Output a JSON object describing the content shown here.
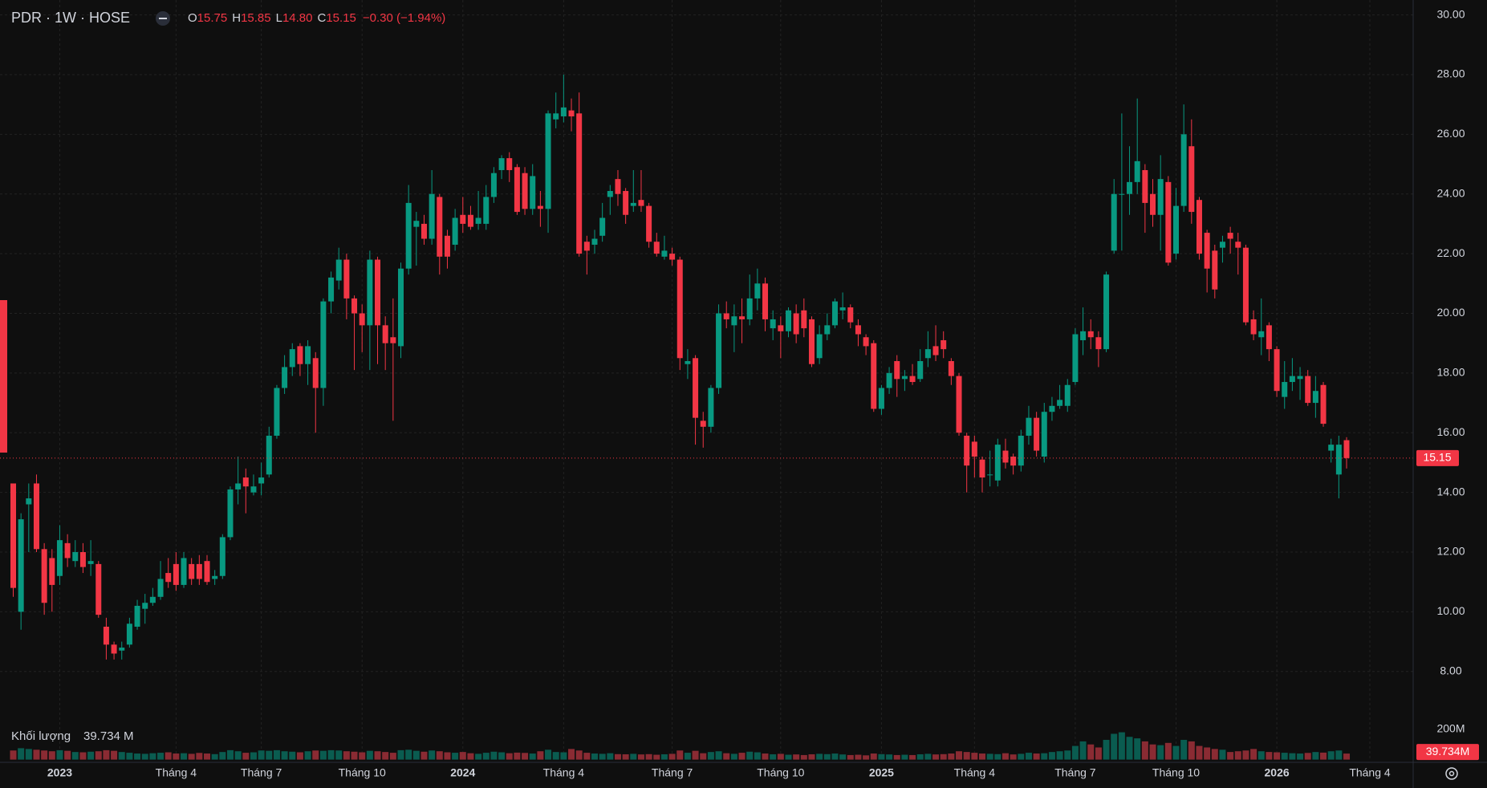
{
  "header": {
    "symbol": "PDR · 1W · HOSE",
    "o_label": "O",
    "o": "15.75",
    "h_label": "H",
    "h": "15.85",
    "l_label": "L",
    "l": "14.80",
    "c_label": "C",
    "c": "15.15",
    "change": "−0.30 (−1.94%)"
  },
  "chart_data": {
    "type": "candlestick",
    "categories": [
      null,
      null,
      null,
      null,
      null,
      null,
      "2023",
      null,
      null,
      null,
      null,
      null,
      null,
      null,
      null,
      null,
      null,
      null,
      null,
      null,
      null,
      "Tháng 4",
      null,
      null,
      null,
      null,
      null,
      null,
      null,
      null,
      null,
      null,
      "Tháng 7",
      null,
      null,
      null,
      null,
      null,
      null,
      null,
      null,
      null,
      null,
      null,
      null,
      "Tháng 10",
      null,
      null,
      null,
      null,
      null,
      null,
      null,
      null,
      null,
      null,
      null,
      null,
      "2024",
      null,
      null,
      null,
      null,
      null,
      null,
      null,
      null,
      null,
      null,
      null,
      null,
      "Tháng 4",
      null,
      null,
      null,
      null,
      null,
      null,
      null,
      null,
      null,
      null,
      null,
      null,
      null,
      "Tháng 7",
      null,
      null,
      null,
      null,
      null,
      null,
      null,
      null,
      null,
      null,
      null,
      null,
      null,
      "Tháng 10",
      null,
      null,
      null,
      null,
      null,
      null,
      null,
      null,
      null,
      null,
      null,
      null,
      "2025",
      null,
      null,
      null,
      null,
      null,
      null,
      null,
      null,
      null,
      null,
      null,
      "Tháng 4",
      null,
      null,
      null,
      null,
      null,
      null,
      null,
      null,
      null,
      null,
      null,
      null,
      "Tháng 7",
      null,
      null,
      null,
      null,
      null,
      null,
      null,
      null,
      null,
      null,
      null,
      null,
      "Tháng 10",
      null,
      null,
      null,
      null,
      null,
      null,
      null,
      null,
      null,
      null,
      null,
      null,
      "2026",
      null,
      null,
      null,
      null,
      null,
      null,
      null,
      null,
      null,
      null,
      null,
      "Tháng 4"
    ],
    "ohlc": [
      [
        14.3,
        14.3,
        10.5,
        10.8
      ],
      [
        10.0,
        13.3,
        9.4,
        13.1
      ],
      [
        13.6,
        14.3,
        12.0,
        13.8
      ],
      [
        14.3,
        14.6,
        12.0,
        12.1
      ],
      [
        12.1,
        12.3,
        9.9,
        10.3
      ],
      [
        11.8,
        12.1,
        10.0,
        10.9
      ],
      [
        11.2,
        12.9,
        10.9,
        12.4
      ],
      [
        12.3,
        12.6,
        11.5,
        11.8
      ],
      [
        11.7,
        12.4,
        11.5,
        12.0
      ],
      [
        12.0,
        12.3,
        11.3,
        11.5
      ],
      [
        11.6,
        12.4,
        11.2,
        11.7
      ],
      [
        11.6,
        11.7,
        9.8,
        9.9
      ],
      [
        9.5,
        9.8,
        8.4,
        8.9
      ],
      [
        8.9,
        9.0,
        8.4,
        8.6
      ],
      [
        8.7,
        9.0,
        8.4,
        8.8
      ],
      [
        8.9,
        9.8,
        8.8,
        9.6
      ],
      [
        9.5,
        10.4,
        9.4,
        10.2
      ],
      [
        10.1,
        10.6,
        9.6,
        10.3
      ],
      [
        10.3,
        10.8,
        10.2,
        10.5
      ],
      [
        10.5,
        11.7,
        10.4,
        11.1
      ],
      [
        11.3,
        11.8,
        10.8,
        11.0
      ],
      [
        11.6,
        12.0,
        10.7,
        10.9
      ],
      [
        10.9,
        12.0,
        10.8,
        11.8
      ],
      [
        11.6,
        11.8,
        10.9,
        11.1
      ],
      [
        11.6,
        11.9,
        10.9,
        11.1
      ],
      [
        11.7,
        11.9,
        10.9,
        11.0
      ],
      [
        11.1,
        11.4,
        10.9,
        11.2
      ],
      [
        11.2,
        12.6,
        11.1,
        12.5
      ],
      [
        12.5,
        14.2,
        12.4,
        14.1
      ],
      [
        14.1,
        15.2,
        13.6,
        14.3
      ],
      [
        14.5,
        14.8,
        13.3,
        14.2
      ],
      [
        14.0,
        14.6,
        13.9,
        14.2
      ],
      [
        14.3,
        15.0,
        13.9,
        14.5
      ],
      [
        14.6,
        16.2,
        14.5,
        15.9
      ],
      [
        15.9,
        17.6,
        15.8,
        17.5
      ],
      [
        17.5,
        18.6,
        17.3,
        18.2
      ],
      [
        18.2,
        19.0,
        17.9,
        18.8
      ],
      [
        18.9,
        19.0,
        17.9,
        18.3
      ],
      [
        18.3,
        19.1,
        17.6,
        18.9
      ],
      [
        18.5,
        18.7,
        16.0,
        17.5
      ],
      [
        17.5,
        20.5,
        16.9,
        20.4
      ],
      [
        20.4,
        21.4,
        20.0,
        21.2
      ],
      [
        21.1,
        22.2,
        20.8,
        21.8
      ],
      [
        21.8,
        22.0,
        19.8,
        20.5
      ],
      [
        20.5,
        20.6,
        18.1,
        20.0
      ],
      [
        20.0,
        20.3,
        18.7,
        19.6
      ],
      [
        19.6,
        22.1,
        18.1,
        21.8
      ],
      [
        21.8,
        21.9,
        18.3,
        19.6
      ],
      [
        19.6,
        19.9,
        18.1,
        19.0
      ],
      [
        19.2,
        20.5,
        16.4,
        19.0
      ],
      [
        18.9,
        21.7,
        18.5,
        21.5
      ],
      [
        21.5,
        24.3,
        21.3,
        23.7
      ],
      [
        22.9,
        23.4,
        21.6,
        23.1
      ],
      [
        23.0,
        23.3,
        22.3,
        22.5
      ],
      [
        22.5,
        24.8,
        22.3,
        24.0
      ],
      [
        23.9,
        24.0,
        21.3,
        21.9
      ],
      [
        22.6,
        22.8,
        21.5,
        21.9
      ],
      [
        22.3,
        23.5,
        22.1,
        23.2
      ],
      [
        23.3,
        23.9,
        22.7,
        23.0
      ],
      [
        23.3,
        23.6,
        22.8,
        22.9
      ],
      [
        23.0,
        24.1,
        22.8,
        23.2
      ],
      [
        23.0,
        24.3,
        22.8,
        23.9
      ],
      [
        23.9,
        24.9,
        23.7,
        24.7
      ],
      [
        24.8,
        25.3,
        24.5,
        25.2
      ],
      [
        25.2,
        25.4,
        24.4,
        24.8
      ],
      [
        24.9,
        25.0,
        23.3,
        23.4
      ],
      [
        24.7,
        24.9,
        23.3,
        23.5
      ],
      [
        23.5,
        25.0,
        23.3,
        24.6
      ],
      [
        23.6,
        24.1,
        22.9,
        23.5
      ],
      [
        23.5,
        26.8,
        22.7,
        26.7
      ],
      [
        26.5,
        27.4,
        26.2,
        26.7
      ],
      [
        26.6,
        28.0,
        26.4,
        26.9
      ],
      [
        26.8,
        27.2,
        26.1,
        26.6
      ],
      [
        26.7,
        27.4,
        21.9,
        22.0
      ],
      [
        22.4,
        22.6,
        21.3,
        22.1
      ],
      [
        22.3,
        22.8,
        22.0,
        22.5
      ],
      [
        22.6,
        23.7,
        22.4,
        23.2
      ],
      [
        23.9,
        24.3,
        23.3,
        24.1
      ],
      [
        24.5,
        24.8,
        23.6,
        24.0
      ],
      [
        24.1,
        24.2,
        23.0,
        23.3
      ],
      [
        23.6,
        24.8,
        23.4,
        23.7
      ],
      [
        23.8,
        24.8,
        23.4,
        23.6
      ],
      [
        23.6,
        23.7,
        22.2,
        22.4
      ],
      [
        22.4,
        22.7,
        21.9,
        22.0
      ],
      [
        21.9,
        22.6,
        21.8,
        22.1
      ],
      [
        22.0,
        22.2,
        21.6,
        21.8
      ],
      [
        21.8,
        21.9,
        18.1,
        18.5
      ],
      [
        18.3,
        18.8,
        17.8,
        18.4
      ],
      [
        18.5,
        18.6,
        15.6,
        16.5
      ],
      [
        16.4,
        16.7,
        15.5,
        16.2
      ],
      [
        16.2,
        17.6,
        16.0,
        17.5
      ],
      [
        17.5,
        20.3,
        17.3,
        20.0
      ],
      [
        20.0,
        20.4,
        19.5,
        19.8
      ],
      [
        19.6,
        20.3,
        18.7,
        19.9
      ],
      [
        19.9,
        20.5,
        19.0,
        19.8
      ],
      [
        19.8,
        21.3,
        19.6,
        20.5
      ],
      [
        20.5,
        21.5,
        20.1,
        21.0
      ],
      [
        21.0,
        21.2,
        19.4,
        19.8
      ],
      [
        19.5,
        20.1,
        19.1,
        19.8
      ],
      [
        19.6,
        19.9,
        18.5,
        19.4
      ],
      [
        19.4,
        20.2,
        19.2,
        20.1
      ],
      [
        20.0,
        20.3,
        19.0,
        19.3
      ],
      [
        20.1,
        20.5,
        19.2,
        19.5
      ],
      [
        19.8,
        19.9,
        18.2,
        18.3
      ],
      [
        18.5,
        19.6,
        18.3,
        19.3
      ],
      [
        19.3,
        20.0,
        19.1,
        19.6
      ],
      [
        19.6,
        20.5,
        19.5,
        20.4
      ],
      [
        20.1,
        20.7,
        19.8,
        20.2
      ],
      [
        20.2,
        20.3,
        19.5,
        19.7
      ],
      [
        19.6,
        19.8,
        18.9,
        19.3
      ],
      [
        19.2,
        19.3,
        18.6,
        18.9
      ],
      [
        19.0,
        19.1,
        16.7,
        16.8
      ],
      [
        16.8,
        17.6,
        16.6,
        17.5
      ],
      [
        17.5,
        18.2,
        17.3,
        18.0
      ],
      [
        18.4,
        18.6,
        17.2,
        17.8
      ],
      [
        17.8,
        18.1,
        17.4,
        17.9
      ],
      [
        17.9,
        18.3,
        17.6,
        17.7
      ],
      [
        17.8,
        18.8,
        17.7,
        18.4
      ],
      [
        18.5,
        19.4,
        18.2,
        18.8
      ],
      [
        18.9,
        19.6,
        18.4,
        18.6
      ],
      [
        19.1,
        19.4,
        18.5,
        18.8
      ],
      [
        18.4,
        18.5,
        17.6,
        17.9
      ],
      [
        17.9,
        18.0,
        15.9,
        16.0
      ],
      [
        15.9,
        16.0,
        14.0,
        14.9
      ],
      [
        15.7,
        15.9,
        14.5,
        15.2
      ],
      [
        15.1,
        15.2,
        14.0,
        14.5
      ],
      [
        14.6,
        15.4,
        14.2,
        14.6
      ],
      [
        14.4,
        15.8,
        14.2,
        15.6
      ],
      [
        15.4,
        15.8,
        14.8,
        15.0
      ],
      [
        15.2,
        15.3,
        14.6,
        14.9
      ],
      [
        14.9,
        16.1,
        14.7,
        15.9
      ],
      [
        15.9,
        16.9,
        15.6,
        16.5
      ],
      [
        16.5,
        16.7,
        15.2,
        15.4
      ],
      [
        15.2,
        17.0,
        15.0,
        16.7
      ],
      [
        16.7,
        17.2,
        16.4,
        16.9
      ],
      [
        16.9,
        17.6,
        16.8,
        17.1
      ],
      [
        16.9,
        17.8,
        16.7,
        17.6
      ],
      [
        17.7,
        19.5,
        17.6,
        19.3
      ],
      [
        19.1,
        20.2,
        18.6,
        19.4
      ],
      [
        19.4,
        19.8,
        18.8,
        19.2
      ],
      [
        19.2,
        19.4,
        18.2,
        18.8
      ],
      [
        18.8,
        21.4,
        18.7,
        21.3
      ],
      [
        22.1,
        24.5,
        22.0,
        24.0
      ],
      [
        24.0,
        26.7,
        22.1,
        24.0
      ],
      [
        24.0,
        25.6,
        23.3,
        24.4
      ],
      [
        24.4,
        27.2,
        24.0,
        25.1
      ],
      [
        24.8,
        25.0,
        22.7,
        23.7
      ],
      [
        24.0,
        24.5,
        22.9,
        23.3
      ],
      [
        23.3,
        25.3,
        22.1,
        24.5
      ],
      [
        24.4,
        24.6,
        21.6,
        21.7
      ],
      [
        22.0,
        24.2,
        21.8,
        23.6
      ],
      [
        23.6,
        27.0,
        23.4,
        26.0
      ],
      [
        25.6,
        26.5,
        23.0,
        23.4
      ],
      [
        23.8,
        23.9,
        21.8,
        22.0
      ],
      [
        22.7,
        22.8,
        20.7,
        21.5
      ],
      [
        22.1,
        22.3,
        20.5,
        20.8
      ],
      [
        22.2,
        22.6,
        21.7,
        22.4
      ],
      [
        22.7,
        22.9,
        22.0,
        22.5
      ],
      [
        22.4,
        22.7,
        21.3,
        22.2
      ],
      [
        22.2,
        22.3,
        19.6,
        19.7
      ],
      [
        19.8,
        20.1,
        19.1,
        19.3
      ],
      [
        19.2,
        20.5,
        18.6,
        19.4
      ],
      [
        19.6,
        19.7,
        18.4,
        18.8
      ],
      [
        18.8,
        18.9,
        17.2,
        17.4
      ],
      [
        17.2,
        18.4,
        16.8,
        17.7
      ],
      [
        17.7,
        18.5,
        17.4,
        17.9
      ],
      [
        17.8,
        18.2,
        17.1,
        17.9
      ],
      [
        17.9,
        18.1,
        16.9,
        17.0
      ],
      [
        17.0,
        17.9,
        16.5,
        17.4
      ],
      [
        17.6,
        17.7,
        16.2,
        16.3
      ],
      [
        15.4,
        15.8,
        15.0,
        15.6
      ],
      [
        14.6,
        15.9,
        13.8,
        15.6
      ],
      [
        15.75,
        15.85,
        14.8,
        15.15
      ],
      null,
      null,
      null
    ],
    "ylim": [
      6.3,
      30.5
    ],
    "yticks": [
      {
        "value": 8,
        "label": "8.00"
      },
      {
        "value": 10,
        "label": "10.00"
      },
      {
        "value": 12,
        "label": "12.00"
      },
      {
        "value": 14,
        "label": "14.00"
      },
      {
        "value": 16,
        "label": "16.00"
      },
      {
        "value": 18,
        "label": "18.00"
      },
      {
        "value": 20,
        "label": "20.00"
      },
      {
        "value": 22,
        "label": "22.00"
      },
      {
        "value": 24,
        "label": "24.00"
      },
      {
        "value": 26,
        "label": "26.00"
      },
      {
        "value": 28,
        "label": "28.00"
      },
      {
        "value": 30,
        "label": "30.00"
      }
    ],
    "grid": true,
    "up_color": "#089981",
    "down_color": "#f23645",
    "last_price": 15.15,
    "volume": {
      "name": "Khối lượng",
      "value_label": "39.734 M",
      "last_label": "39.734M",
      "ylim": [
        0,
        220
      ],
      "yticks": [
        {
          "value": 200,
          "label": "200M"
        }
      ],
      "up_color": "#0a5c50",
      "down_color": "#8a2b33",
      "values": [
        60,
        75,
        70,
        65,
        60,
        55,
        62,
        58,
        50,
        48,
        52,
        55,
        62,
        58,
        50,
        45,
        40,
        38,
        42,
        45,
        48,
        40,
        42,
        38,
        44,
        40,
        36,
        50,
        62,
        55,
        45,
        48,
        60,
        58,
        62,
        55,
        52,
        48,
        55,
        60,
        58,
        62,
        60,
        55,
        52,
        48,
        58,
        55,
        50,
        45,
        62,
        65,
        58,
        52,
        60,
        55,
        48,
        45,
        50,
        42,
        38,
        45,
        52,
        48,
        42,
        46,
        44,
        40,
        55,
        65,
        50,
        48,
        70,
        60,
        45,
        40,
        38,
        42,
        36,
        35,
        38,
        34,
        36,
        32,
        35,
        38,
        60,
        45,
        58,
        42,
        50,
        55,
        42,
        38,
        45,
        52,
        48,
        40,
        35,
        38,
        32,
        34,
        30,
        35,
        38,
        36,
        40,
        34,
        30,
        32,
        28,
        40,
        36,
        34,
        30,
        32,
        30,
        35,
        38,
        34,
        36,
        40,
        55,
        50,
        45,
        40,
        38,
        36,
        42,
        34,
        38,
        45,
        40,
        42,
        50,
        55,
        60,
        90,
        120,
        100,
        80,
        130,
        170,
        180,
        150,
        140,
        120,
        100,
        95,
        110,
        90,
        130,
        120,
        90,
        80,
        70,
        65,
        50,
        55,
        60,
        70,
        55,
        50,
        48,
        45,
        42,
        40,
        44,
        50,
        46,
        55,
        60,
        39.734,
        null,
        null,
        null
      ]
    }
  }
}
